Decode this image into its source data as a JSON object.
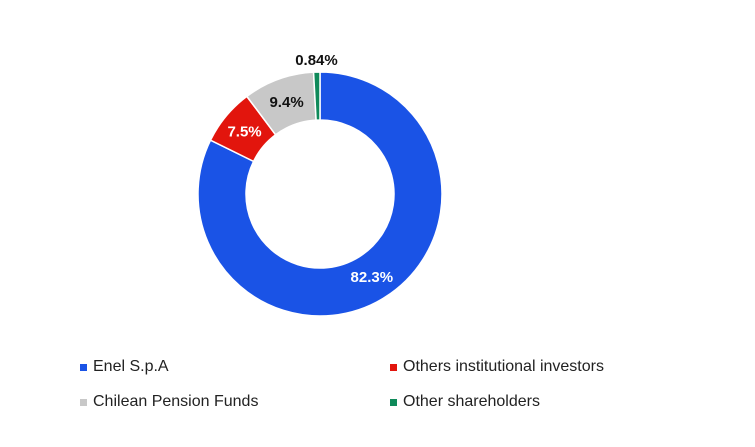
{
  "chart_data": {
    "type": "pie",
    "variant": "donut",
    "slices": [
      {
        "name": "Enel S.p.A",
        "value": 82.3,
        "label": "82.3%",
        "color": "#1a53e6",
        "label_color": "#ffffff"
      },
      {
        "name": "Others institutional investors",
        "value": 7.5,
        "label": "7.5%",
        "color": "#e2150d",
        "label_color": "#ffffff"
      },
      {
        "name": "Chilean Pension Funds",
        "value": 9.4,
        "label": "9.4%",
        "color": "#c8c8c8",
        "label_color": "#111111"
      },
      {
        "name": "Other shareholders",
        "value": 0.84,
        "label": "0.84%",
        "color": "#0f8a5a",
        "label_color": "#111111"
      }
    ],
    "legend_position": "bottom"
  }
}
